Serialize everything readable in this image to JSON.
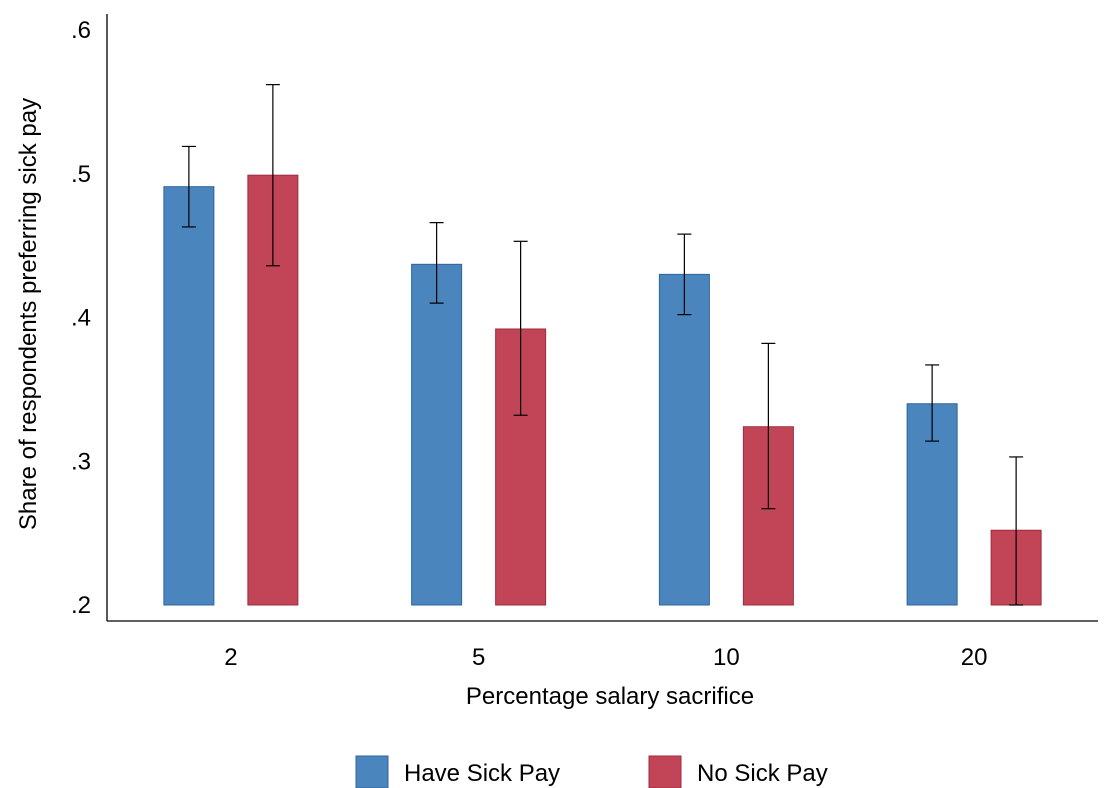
{
  "chart_data": {
    "type": "bar",
    "categories": [
      "2",
      "5",
      "10",
      "20"
    ],
    "series": [
      {
        "name": "Have Sick Pay",
        "color": "#4a85bd",
        "edge": "#2f6599",
        "values": [
          0.491,
          0.437,
          0.43,
          0.34
        ],
        "ci_low": [
          0.463,
          0.41,
          0.402,
          0.314
        ],
        "ci_high": [
          0.519,
          0.466,
          0.458,
          0.367
        ]
      },
      {
        "name": "No Sick Pay",
        "color": "#c14557",
        "edge": "#a02a3c",
        "values": [
          0.499,
          0.392,
          0.324,
          0.252
        ],
        "ci_low": [
          0.436,
          0.332,
          0.267,
          0.2
        ],
        "ci_high": [
          0.562,
          0.453,
          0.382,
          0.303
        ]
      }
    ],
    "title": "",
    "xlabel": "Percentage salary sacrifice",
    "ylabel": "Share of respondents preferring sick pay",
    "ylim": [
      0.2,
      0.6
    ],
    "yticks": [
      0.2,
      0.3,
      0.4,
      0.5,
      0.6
    ],
    "ytick_labels": [
      ".2",
      ".3",
      ".4",
      ".5",
      ".6"
    ],
    "grid": false,
    "legend_position": "bottom"
  }
}
